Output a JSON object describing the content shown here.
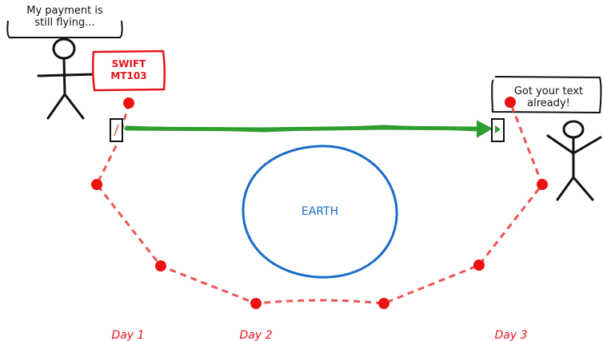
{
  "sender_bubble": {
    "line1": "My payment is",
    "line2": "still flying..."
  },
  "receiver_bubble": {
    "line1": "Got your text",
    "line2": "already!"
  },
  "swift_box": {
    "line1": "SWIFT",
    "line2": "MT103"
  },
  "earth_label": "EARTH",
  "day_labels": [
    "Day 1",
    "Day 2",
    "Day 3"
  ],
  "colors": {
    "route": "#ee3333",
    "message_arrow": "#2e9e2e",
    "earth": "#1a6cc8",
    "swift": "#e8141b"
  }
}
